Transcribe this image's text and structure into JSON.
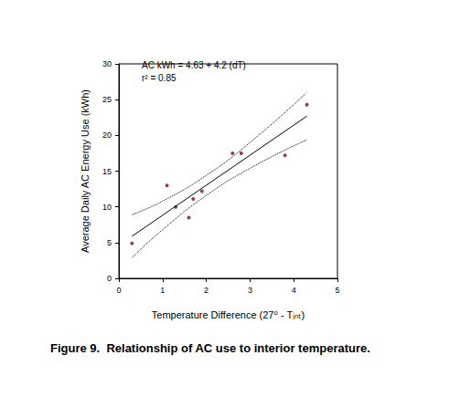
{
  "chart_data": {
    "type": "scatter",
    "figure_label": "Figure 9.",
    "title": "Relationship of AC use to interior temperature.",
    "x_label": "Temperature Difference (27⁰ - Tᵢₙₜ)",
    "y_label": "Average Daily AC Energy Use (kWh)",
    "annotations": [
      "AC kWh = 4.63 + 4.2 (dT)",
      "r² = 0.85"
    ],
    "xlim": [
      0,
      5
    ],
    "xticks": [
      0,
      1,
      2,
      3,
      4,
      5
    ],
    "ylim": [
      0,
      30
    ],
    "yticks": [
      0,
      5,
      10,
      15,
      20,
      25,
      30
    ],
    "grid": false,
    "series": [
      {
        "type": "scatter",
        "marker": "circle",
        "color": "#7a1010",
        "x": [
          0.3,
          1.1,
          1.3,
          1.6,
          1.7,
          1.9,
          2.6,
          2.8,
          3.8,
          4.3
        ],
        "values": [
          4.9,
          13.0,
          10.0,
          8.5,
          11.1,
          12.2,
          17.5,
          17.5,
          17.2,
          24.3
        ]
      },
      {
        "type": "line",
        "line_style": "solid",
        "color": "#000000",
        "x": [
          0.3,
          4.3
        ],
        "values": [
          5.89,
          22.69
        ]
      },
      {
        "type": "line",
        "line_style": "dotted",
        "color": "#000000",
        "x": [
          0.3,
          1,
          2,
          3,
          4.3
        ],
        "values": [
          8.9,
          10.8,
          14.4,
          19.0,
          26.0
        ]
      },
      {
        "type": "line",
        "line_style": "dotted",
        "color": "#000000",
        "x": [
          0.3,
          1,
          2,
          3,
          4.3
        ],
        "values": [
          2.9,
          6.8,
          11.6,
          15.4,
          19.4
        ]
      }
    ]
  }
}
